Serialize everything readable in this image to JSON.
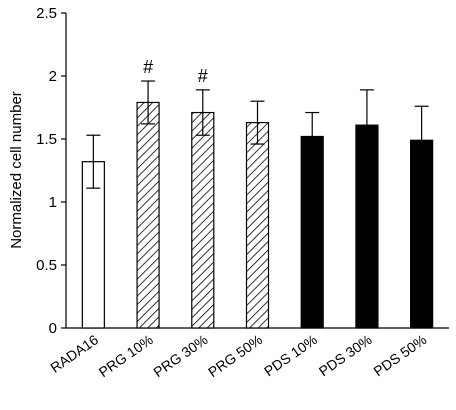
{
  "chart_data": {
    "type": "bar",
    "ylabel": "Normalized cell number",
    "xlabel": "",
    "ylim": [
      0,
      2.5
    ],
    "yticks": [
      0,
      0.5,
      1,
      1.5,
      2,
      2.5
    ],
    "ytick_labels": [
      "0",
      "0.5",
      "1",
      "1.5",
      "2",
      "2.5"
    ],
    "categories": [
      "RADA16",
      "PRG 10%",
      "PRG 30%",
      "PRG 50%",
      "PDS 10%",
      "PDS 30%",
      "PDS 50%"
    ],
    "values": [
      1.32,
      1.79,
      1.71,
      1.63,
      1.52,
      1.61,
      1.49
    ],
    "errors": [
      0.21,
      0.17,
      0.18,
      0.17,
      0.19,
      0.28,
      0.27
    ],
    "fills": [
      "white",
      "hatched",
      "hatched",
      "hatched",
      "black",
      "black",
      "black"
    ],
    "annotations": [
      "",
      "#",
      "#",
      "",
      "",
      "",
      ""
    ],
    "grid": false,
    "colors": {
      "black": "#000000",
      "white": "#ffffff",
      "hatch": "#000000"
    }
  }
}
